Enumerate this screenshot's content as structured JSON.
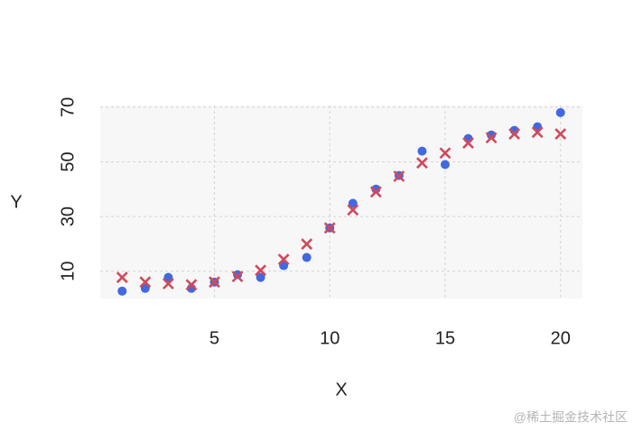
{
  "chart_data": {
    "type": "scatter",
    "xlabel": "X",
    "ylabel": "Y",
    "x": [
      1,
      2,
      3,
      4,
      5,
      6,
      7,
      8,
      9,
      10,
      11,
      12,
      13,
      14,
      15,
      16,
      17,
      18,
      19,
      20
    ],
    "series": [
      {
        "color": "#4169e1",
        "marker": "circle",
        "values": [
          2.7,
          3.7,
          7.7,
          3.7,
          6.0,
          8.7,
          7.7,
          12,
          15,
          25.8,
          34.8,
          40,
          45,
          53.9,
          49,
          58.5,
          59.8,
          61.5,
          62.8,
          68
        ]
      },
      {
        "color": "#d1495b",
        "marker": "x",
        "values": [
          7.7,
          6.0,
          5.4,
          5.0,
          6.0,
          8.0,
          10.3,
          14.3,
          19.9,
          25.8,
          32.4,
          39,
          44.7,
          49.6,
          53.2,
          56.9,
          58.8,
          60.2,
          60.8,
          60.2
        ]
      }
    ],
    "xlim": [
      0.05,
      20.95
    ],
    "xticks": [
      5,
      10,
      15,
      20
    ],
    "ylim": [
      0,
      70.6
    ],
    "yticks": [
      10,
      30,
      50,
      70
    ],
    "grid": true,
    "watermark": "@稀土掘金技术社区"
  }
}
